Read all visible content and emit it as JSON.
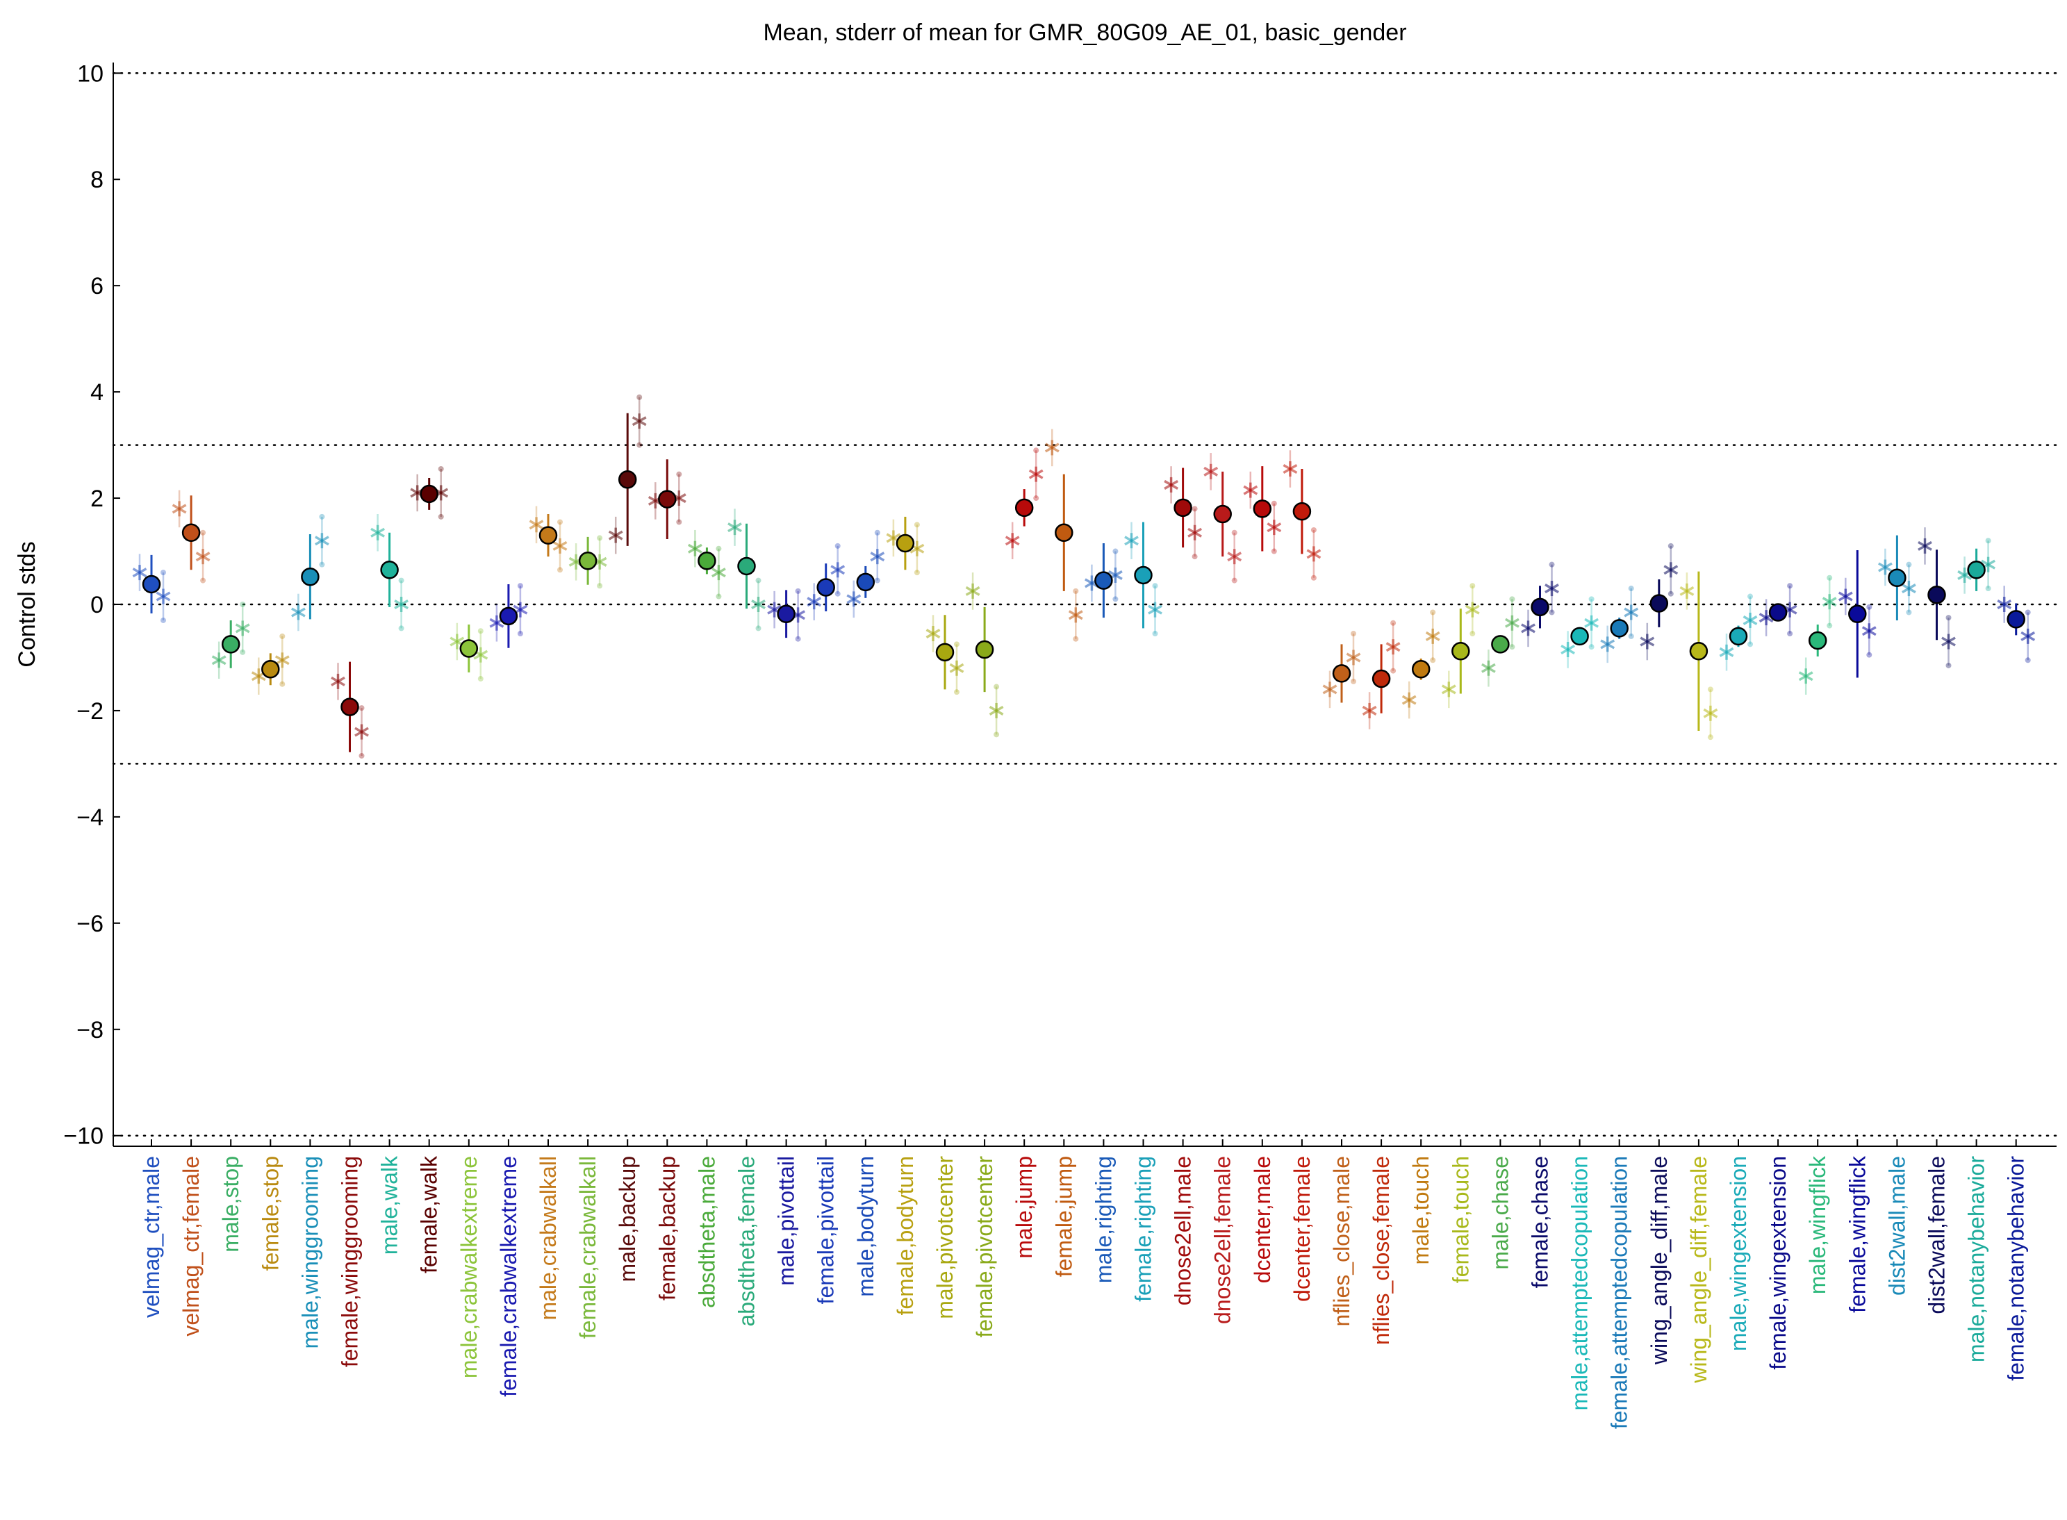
{
  "chart_data": {
    "type": "scatter",
    "title": "Mean, stderr of mean for GMR_80G09_AE_01, basic_gender",
    "xlabel": "",
    "ylabel": "Control stds",
    "ylim": [
      -10.2,
      10.2
    ],
    "yticks": [
      -10,
      -8,
      -6,
      -4,
      -2,
      0,
      2,
      4,
      6,
      8,
      10
    ],
    "yticklabels": [
      "−10",
      "−8",
      "−6",
      "−4",
      "−2",
      "0",
      "2",
      "4",
      "6",
      "8",
      "10"
    ],
    "reference_lines": [
      -10,
      -3,
      0,
      3,
      10
    ],
    "grid": false,
    "legend": "none",
    "categories": [
      "velmag_ctr,male",
      "velmag_ctr,female",
      "male,stop",
      "female,stop",
      "male,winggrooming",
      "female,winggrooming",
      "male,walk",
      "female,walk",
      "male,crabwalkextreme",
      "female,crabwalkextreme",
      "male,crabwalkall",
      "female,crabwalkall",
      "male,backup",
      "female,backup",
      "absdtheta,male",
      "absdtheta,female",
      "male,pivottail",
      "female,pivottail",
      "male,bodyturn",
      "female,bodyturn",
      "male,pivotcenter",
      "female,pivotcenter",
      "male,jump",
      "female,jump",
      "male,righting",
      "female,righting",
      "dnose2ell,male",
      "dnose2ell,female",
      "dcenter,male",
      "dcenter,female",
      "nflies_close,male",
      "nflies_close,female",
      "male,touch",
      "female,touch",
      "male,chase",
      "female,chase",
      "male,attemptedcopulation",
      "female,attemptedcopulation",
      "wing_angle_diff,male",
      "wing_angle_diff,female",
      "male,wingextension",
      "female,wingextension",
      "male,wingflick",
      "female,wingflick",
      "dist2wall,male",
      "dist2wall,female",
      "male,notanybehavior",
      "female,notanybehavior"
    ],
    "colors": [
      "#1f4fbf",
      "#c0501a",
      "#3aae64",
      "#b98a10",
      "#1a8fb8",
      "#8b0a0a",
      "#20b29a",
      "#5a0000",
      "#8cc43a",
      "#1a1ab0",
      "#c47a1a",
      "#7ab83a",
      "#5a0a0a",
      "#7a0a0a",
      "#4aaa3a",
      "#2aaa7a",
      "#1a1aa0",
      "#1a3ab8",
      "#1a4ab8",
      "#b8a010",
      "#a8a810",
      "#8aaa1a",
      "#b80a0a",
      "#c05a10",
      "#1a5ab8",
      "#1aa0b8",
      "#a00a0a",
      "#b81a1a",
      "#b80a0a",
      "#c01a0a",
      "#c0601a",
      "#c02a0a",
      "#c07a10",
      "#a8b81a",
      "#4aaa4a",
      "#0a0a6a",
      "#1ab8b8",
      "#1a7ab8",
      "#0a0a5a",
      "#b8b81a",
      "#1aaab8",
      "#0a0a8a",
      "#2ab87a",
      "#0a0a9a",
      "#1a8ab8",
      "#0a0a5a",
      "#1aaa9a",
      "#0a1a9a"
    ],
    "mean": [
      0.38,
      1.35,
      -0.75,
      -1.22,
      0.52,
      -1.93,
      0.65,
      2.08,
      -0.83,
      -0.22,
      1.3,
      0.82,
      2.35,
      1.98,
      0.82,
      0.72,
      -0.18,
      0.32,
      0.42,
      1.15,
      -0.9,
      -0.85,
      1.82,
      1.35,
      0.45,
      0.55,
      1.82,
      1.7,
      1.8,
      1.75,
      -1.3,
      -1.4,
      -1.22,
      -0.88,
      -0.75,
      -0.05,
      -0.6,
      -0.45,
      0.02,
      -0.88,
      -0.6,
      -0.15,
      -0.68,
      -0.18,
      0.5,
      0.18,
      0.65,
      -0.28
    ],
    "stderr": [
      0.55,
      0.7,
      0.45,
      0.3,
      0.8,
      0.85,
      0.7,
      0.3,
      0.45,
      0.6,
      0.4,
      0.45,
      1.25,
      0.75,
      0.25,
      0.8,
      0.45,
      0.45,
      0.3,
      0.5,
      0.7,
      0.8,
      0.35,
      1.1,
      0.7,
      1.0,
      0.75,
      0.8,
      0.8,
      0.8,
      0.55,
      0.65,
      0.2,
      0.8,
      0.15,
      0.4,
      0.15,
      0.2,
      0.45,
      1.5,
      0.2,
      0.1,
      0.3,
      1.2,
      0.8,
      0.85,
      0.4,
      0.3
    ],
    "subject_points": {
      "left_star": [
        0.6,
        1.8,
        -1.05,
        -1.35,
        -0.15,
        -1.45,
        1.35,
        2.1,
        -0.7,
        -0.35,
        1.5,
        0.8,
        1.3,
        1.95,
        1.05,
        1.45,
        -0.1,
        0.05,
        0.1,
        1.25,
        -0.55,
        0.25,
        1.2,
        2.95,
        0.4,
        1.2,
        2.25,
        2.5,
        2.15,
        2.55,
        -1.6,
        -2.0,
        -1.8,
        -1.6,
        -1.2,
        -0.45,
        -0.85,
        -0.75,
        -0.7,
        0.25,
        -0.9,
        -0.25,
        -1.35,
        0.15,
        0.7,
        1.1,
        0.55,
        0.0
      ],
      "right_star": [
        0.15,
        0.9,
        -0.45,
        -1.05,
        1.2,
        -2.4,
        0.0,
        2.1,
        -0.95,
        -0.1,
        1.1,
        0.8,
        3.45,
        2.0,
        0.6,
        0.0,
        -0.2,
        0.65,
        0.9,
        1.05,
        -1.2,
        -2.0,
        2.45,
        -0.2,
        0.55,
        -0.1,
        1.35,
        0.9,
        1.45,
        0.95,
        -1.0,
        -0.8,
        -0.6,
        -0.1,
        -0.35,
        0.3,
        -0.35,
        -0.15,
        0.65,
        -2.05,
        -0.3,
        -0.1,
        0.05,
        -0.5,
        0.3,
        -0.7,
        0.75,
        -0.6
      ]
    }
  }
}
